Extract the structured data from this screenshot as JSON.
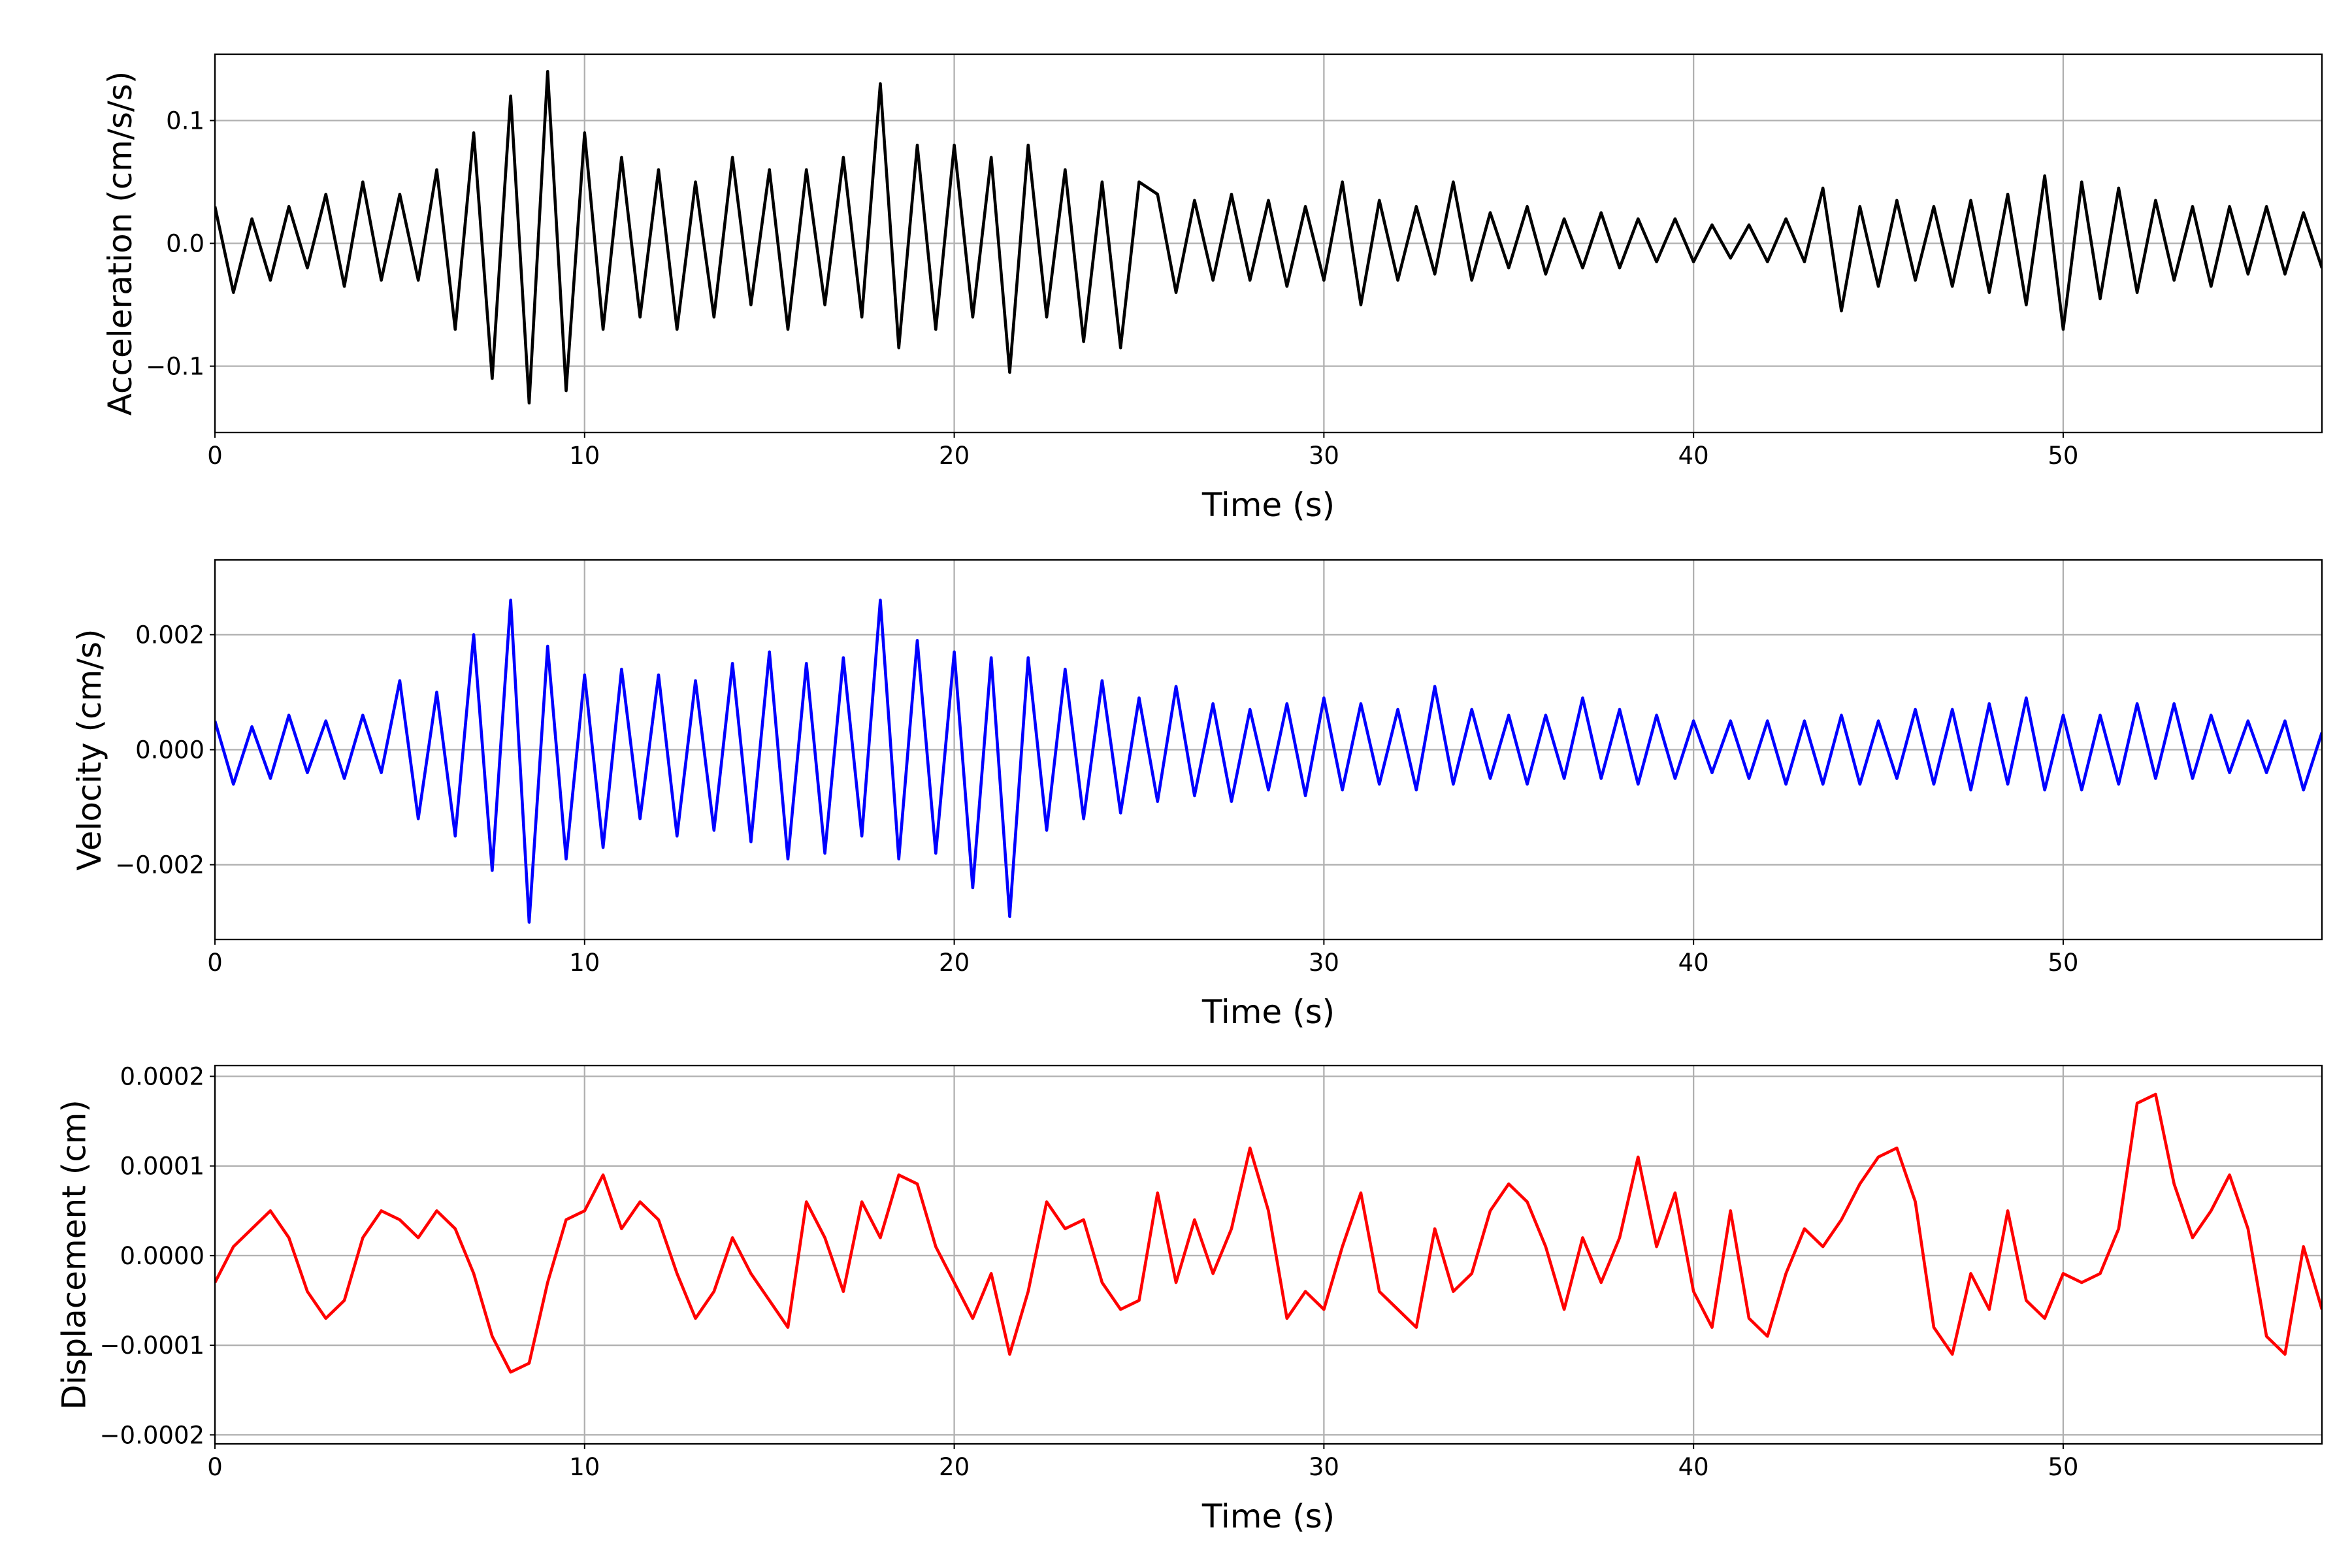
{
  "chart_data": [
    {
      "type": "line",
      "ylabel": "Acceleration (cm/s/s)",
      "xlabel": "Time (s)",
      "color": "#000000",
      "grid": true,
      "xlim": [
        0,
        57
      ],
      "xticks": [
        0,
        10,
        20,
        30,
        40,
        50
      ],
      "ylim": [
        -0.154,
        0.154
      ],
      "yticks": [
        {
          "value": -0.1,
          "label": "−0.1"
        },
        {
          "value": 0,
          "label": "0.0"
        },
        0.1
      ],
      "x": [
        0,
        0.5,
        1,
        1.5,
        2,
        2.5,
        3,
        3.5,
        4,
        4.5,
        5,
        5.5,
        6,
        6.5,
        7,
        7.5,
        8,
        8.5,
        9,
        9.5,
        10,
        10.5,
        11,
        11.5,
        12,
        12.5,
        13,
        13.5,
        14,
        14.5,
        15,
        15.5,
        16,
        16.5,
        17,
        17.5,
        18,
        18.5,
        19,
        19.5,
        20,
        20.5,
        21,
        21.5,
        22,
        22.5,
        23,
        23.5,
        24,
        24.5,
        25,
        25.5,
        26,
        26.5,
        27,
        27.5,
        28,
        28.5,
        29,
        29.5,
        30,
        30.5,
        31,
        31.5,
        32,
        32.5,
        33,
        33.5,
        34,
        34.5,
        35,
        35.5,
        36,
        36.5,
        37,
        37.5,
        38,
        38.5,
        39,
        39.5,
        40,
        40.5,
        41,
        41.5,
        42,
        42.5,
        43,
        43.5,
        44,
        44.5,
        45,
        45.5,
        46,
        46.5,
        47,
        47.5,
        48,
        48.5,
        49,
        49.5,
        50,
        50.5,
        51,
        51.5,
        52,
        52.5,
        53,
        53.5,
        54,
        54.5,
        55,
        55.5,
        56,
        56.5,
        57
      ],
      "values": [
        0.03,
        -0.04,
        0.02,
        -0.03,
        0.03,
        -0.02,
        0.04,
        -0.035,
        0.05,
        -0.03,
        0.04,
        -0.03,
        0.06,
        -0.07,
        0.09,
        -0.11,
        0.12,
        -0.13,
        0.14,
        -0.12,
        0.09,
        -0.07,
        0.07,
        -0.06,
        0.06,
        -0.07,
        0.05,
        -0.06,
        0.07,
        -0.05,
        0.06,
        -0.07,
        0.06,
        -0.05,
        0.07,
        -0.06,
        0.13,
        -0.085,
        0.08,
        -0.07,
        0.08,
        -0.06,
        0.07,
        -0.105,
        0.08,
        -0.06,
        0.06,
        -0.08,
        0.05,
        -0.085,
        0.05,
        0.04,
        -0.04,
        0.035,
        -0.03,
        0.04,
        -0.03,
        0.035,
        -0.035,
        0.03,
        -0.03,
        0.05,
        -0.05,
        0.035,
        -0.03,
        0.03,
        -0.025,
        0.05,
        -0.03,
        0.025,
        -0.02,
        0.03,
        -0.025,
        0.02,
        -0.02,
        0.025,
        -0.02,
        0.02,
        -0.015,
        0.02,
        -0.015,
        0.015,
        -0.012,
        0.015,
        -0.015,
        0.02,
        -0.015,
        0.045,
        -0.055,
        0.03,
        -0.035,
        0.035,
        -0.03,
        0.03,
        -0.035,
        0.035,
        -0.04,
        0.04,
        -0.05,
        0.055,
        -0.07,
        0.05,
        -0.045,
        0.045,
        -0.04,
        0.035,
        -0.03,
        0.03,
        -0.035,
        0.03,
        -0.025,
        0.03,
        -0.025,
        0.025,
        -0.02
      ]
    },
    {
      "type": "line",
      "ylabel": "Velocity (cm/s)",
      "xlabel": "Time (s)",
      "color": "#0000ff",
      "grid": true,
      "xlim": [
        0,
        57
      ],
      "xticks": [
        0,
        10,
        20,
        30,
        40,
        50
      ],
      "ylim": [
        -0.0033,
        0.0033
      ],
      "yticks": [
        {
          "value": -0.002,
          "label": "−0.002"
        },
        {
          "value": 0,
          "label": "0.000"
        },
        0.002
      ],
      "x": [
        0,
        0.5,
        1,
        1.5,
        2,
        2.5,
        3,
        3.5,
        4,
        4.5,
        5,
        5.5,
        6,
        6.5,
        7,
        7.5,
        8,
        8.5,
        9,
        9.5,
        10,
        10.5,
        11,
        11.5,
        12,
        12.5,
        13,
        13.5,
        14,
        14.5,
        15,
        15.5,
        16,
        16.5,
        17,
        17.5,
        18,
        18.5,
        19,
        19.5,
        20,
        20.5,
        21,
        21.5,
        22,
        22.5,
        23,
        23.5,
        24,
        24.5,
        25,
        25.5,
        26,
        26.5,
        27,
        27.5,
        28,
        28.5,
        29,
        29.5,
        30,
        30.5,
        31,
        31.5,
        32,
        32.5,
        33,
        33.5,
        34,
        34.5,
        35,
        35.5,
        36,
        36.5,
        37,
        37.5,
        38,
        38.5,
        39,
        39.5,
        40,
        40.5,
        41,
        41.5,
        42,
        42.5,
        43,
        43.5,
        44,
        44.5,
        45,
        45.5,
        46,
        46.5,
        47,
        47.5,
        48,
        48.5,
        49,
        49.5,
        50,
        50.5,
        51,
        51.5,
        52,
        52.5,
        53,
        53.5,
        54,
        54.5,
        55,
        55.5,
        56,
        56.5,
        57
      ],
      "values": [
        0.0005,
        -0.0006,
        0.0004,
        -0.0005,
        0.0006,
        -0.0004,
        0.0005,
        -0.0005,
        0.0006,
        -0.0004,
        0.0012,
        -0.0012,
        0.001,
        -0.0015,
        0.002,
        -0.0021,
        0.0026,
        -0.003,
        0.0018,
        -0.0019,
        0.0013,
        -0.0017,
        0.0014,
        -0.0012,
        0.0013,
        -0.0015,
        0.0012,
        -0.0014,
        0.0015,
        -0.0016,
        0.0017,
        -0.0019,
        0.0015,
        -0.0018,
        0.0016,
        -0.0015,
        0.0026,
        -0.0019,
        0.0019,
        -0.0018,
        0.0017,
        -0.0024,
        0.0016,
        -0.0029,
        0.0016,
        -0.0014,
        0.0014,
        -0.0012,
        0.0012,
        -0.0011,
        0.0009,
        -0.0009,
        0.0011,
        -0.0008,
        0.0008,
        -0.0009,
        0.0007,
        -0.0007,
        0.0008,
        -0.0008,
        0.0009,
        -0.0007,
        0.0008,
        -0.0006,
        0.0007,
        -0.0007,
        0.0011,
        -0.0006,
        0.0007,
        -0.0005,
        0.0006,
        -0.0006,
        0.0006,
        -0.0005,
        0.0009,
        -0.0005,
        0.0007,
        -0.0006,
        0.0006,
        -0.0005,
        0.0005,
        -0.0004,
        0.0005,
        -0.0005,
        0.0005,
        -0.0006,
        0.0005,
        -0.0006,
        0.0006,
        -0.0006,
        0.0005,
        -0.0005,
        0.0007,
        -0.0006,
        0.0007,
        -0.0007,
        0.0008,
        -0.0006,
        0.0009,
        -0.0007,
        0.0006,
        -0.0007,
        0.0006,
        -0.0006,
        0.0008,
        -0.0005,
        0.0008,
        -0.0005,
        0.0006,
        -0.0004,
        0.0005,
        -0.0004,
        0.0005,
        -0.0007,
        0.0003
      ]
    },
    {
      "type": "line",
      "ylabel": "Displacement (cm)",
      "xlabel": "Time (s)",
      "color": "#ff0000",
      "grid": true,
      "xlim": [
        0,
        57
      ],
      "xticks": [
        0,
        10,
        20,
        30,
        40,
        50
      ],
      "ylim": [
        -0.00021,
        0.000212
      ],
      "yticks": [
        {
          "value": -0.0002,
          "label": "−0.0002"
        },
        {
          "value": -0.0001,
          "label": "−0.0001"
        },
        {
          "value": 0,
          "label": "0.0000"
        },
        0.0001,
        0.0002
      ],
      "x": [
        0,
        0.5,
        1,
        1.5,
        2,
        2.5,
        3,
        3.5,
        4,
        4.5,
        5,
        5.5,
        6,
        6.5,
        7,
        7.5,
        8,
        8.5,
        9,
        9.5,
        10,
        10.5,
        11,
        11.5,
        12,
        12.5,
        13,
        13.5,
        14,
        14.5,
        15,
        15.5,
        16,
        16.5,
        17,
        17.5,
        18,
        18.5,
        19,
        19.5,
        20,
        20.5,
        21,
        21.5,
        22,
        22.5,
        23,
        23.5,
        24,
        24.5,
        25,
        25.5,
        26,
        26.5,
        27,
        27.5,
        28,
        28.5,
        29,
        29.5,
        30,
        30.5,
        31,
        31.5,
        32,
        32.5,
        33,
        33.5,
        34,
        34.5,
        35,
        35.5,
        36,
        36.5,
        37,
        37.5,
        38,
        38.5,
        39,
        39.5,
        40,
        40.5,
        41,
        41.5,
        42,
        42.5,
        43,
        43.5,
        44,
        44.5,
        45,
        45.5,
        46,
        46.5,
        47,
        47.5,
        48,
        48.5,
        49,
        49.5,
        50,
        50.5,
        51,
        51.5,
        52,
        52.5,
        53,
        53.5,
        54,
        54.5,
        55,
        55.5,
        56,
        56.5,
        57
      ],
      "values": [
        -3e-05,
        1e-05,
        3e-05,
        5e-05,
        2e-05,
        -4e-05,
        -7e-05,
        -5e-05,
        2e-05,
        5e-05,
        4e-05,
        2e-05,
        5e-05,
        3e-05,
        -2e-05,
        -9e-05,
        -0.00013,
        -0.00012,
        -3e-05,
        4e-05,
        5e-05,
        9e-05,
        3e-05,
        6e-05,
        4e-05,
        -2e-05,
        -7e-05,
        -4e-05,
        2e-05,
        -2e-05,
        -5e-05,
        -8e-05,
        6e-05,
        2e-05,
        -4e-05,
        6e-05,
        2e-05,
        9e-05,
        8e-05,
        1e-05,
        -3e-05,
        -7e-05,
        -2e-05,
        -0.00011,
        -4e-05,
        6e-05,
        3e-05,
        4e-05,
        -3e-05,
        -6e-05,
        -5e-05,
        7e-05,
        -3e-05,
        4e-05,
        -2e-05,
        3e-05,
        0.00012,
        5e-05,
        -7e-05,
        -4e-05,
        -6e-05,
        1e-05,
        7e-05,
        -4e-05,
        -6e-05,
        -8e-05,
        3e-05,
        -4e-05,
        -2e-05,
        5e-05,
        8e-05,
        6e-05,
        1e-05,
        -6e-05,
        2e-05,
        -3e-05,
        2e-05,
        0.00011,
        1e-05,
        7e-05,
        -4e-05,
        -8e-05,
        5e-05,
        -7e-05,
        -9e-05,
        -2e-05,
        3e-05,
        1e-05,
        4e-05,
        8e-05,
        0.00011,
        0.00012,
        6e-05,
        -8e-05,
        -0.00011,
        -2e-05,
        -6e-05,
        5e-05,
        -5e-05,
        -7e-05,
        -2e-05,
        -3e-05,
        -2e-05,
        3e-05,
        0.00017,
        0.00018,
        8e-05,
        2e-05,
        5e-05,
        9e-05,
        3e-05,
        -9e-05,
        -0.00011,
        1e-05,
        -6e-05
      ]
    }
  ]
}
